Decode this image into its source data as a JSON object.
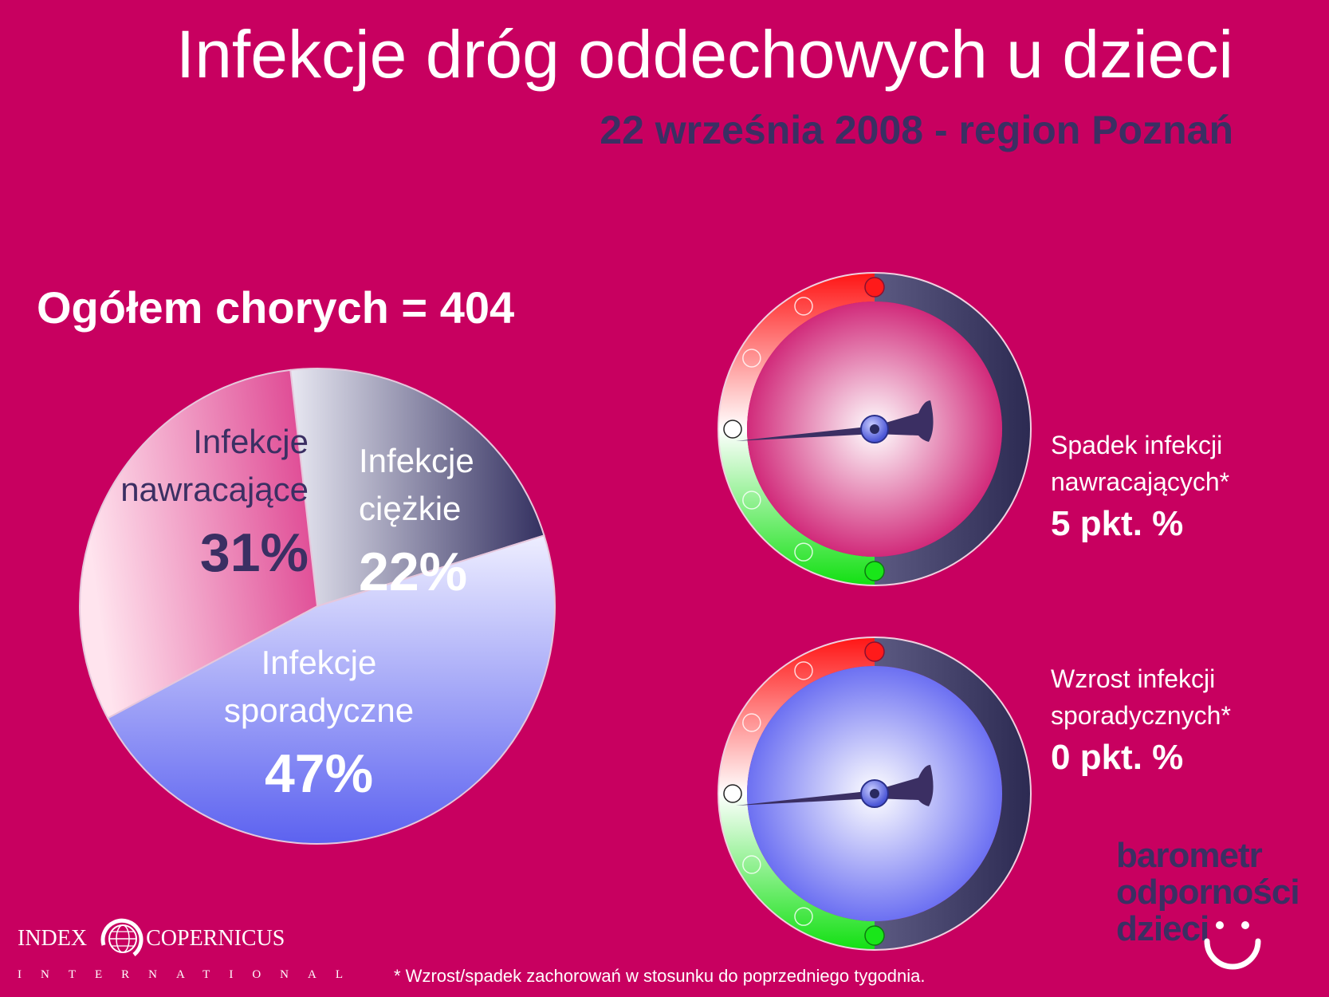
{
  "header": {
    "title": "Infekcje dróg oddechowych u dzieci",
    "subtitle": "22 września 2008 - region Poznań"
  },
  "summary": {
    "total_label": "Ogółem chorych = 404"
  },
  "chart_data": [
    {
      "type": "pie",
      "title": "",
      "slices": [
        {
          "label_lines": [
            "Infekcje",
            "ciężkie"
          ],
          "value": 22,
          "value_label": "22%",
          "color": "#3b3560"
        },
        {
          "label_lines": [
            "Infekcje",
            "sporadyczne"
          ],
          "value": 47,
          "value_label": "47%",
          "color": "#6b73f0"
        },
        {
          "label_lines": [
            "Infekcje",
            "nawracające"
          ],
          "value": 31,
          "value_label": "31%",
          "color": "#de4f96"
        }
      ]
    },
    {
      "type": "gauge",
      "label_lines": [
        "Spadek infekcji",
        "nawracających*"
      ],
      "value": 5,
      "value_label": "5 pkt. %",
      "face_color": "#d12a7a"
    },
    {
      "type": "gauge",
      "label_lines": [
        "Wzrost infekcji",
        "sporadycznych*"
      ],
      "value": 0,
      "value_label": "0 pkt. %",
      "face_color": "#6c70f2"
    }
  ],
  "branding": {
    "barometer_lines": [
      "barometr",
      "odporności",
      "dzieci"
    ],
    "logo_left": "INDEX",
    "logo_right": "COPERNICUS",
    "logo_sub": "INTERNATIONAL"
  },
  "footnote": "* Wzrost/spadek zachorowań w stosunku do poprzedniego tygodnia.",
  "colors": {
    "background": "#c80060",
    "navy": "#3b2f63",
    "gauge_red": "#ff1a1a",
    "gauge_green": "#19e619"
  }
}
